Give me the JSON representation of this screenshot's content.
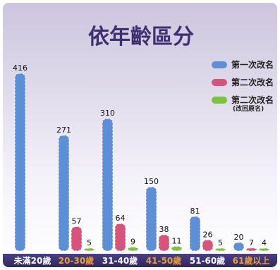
{
  "chart_data": {
    "type": "bar",
    "title": "依年齡區分",
    "categories": [
      "未滿20歲",
      "20-30歲",
      "31-40歲",
      "41-50歲",
      "51-60歲",
      "61歲以上"
    ],
    "category_colors": [
      "#ffffff",
      "#f0a030",
      "#ffffff",
      "#f0a030",
      "#ffffff",
      "#f0a030"
    ],
    "series": [
      {
        "name": "第一次改名",
        "color": "#5b8fd8",
        "values": [
          416,
          271,
          310,
          150,
          81,
          20
        ]
      },
      {
        "name": "第二次改名",
        "color": "#d9527a",
        "values": [
          null,
          57,
          64,
          38,
          26,
          7
        ]
      },
      {
        "name": "第二次改名",
        "sub": "(改回原名)",
        "color": "#7dc23a",
        "values": [
          null,
          5,
          9,
          11,
          5,
          4
        ]
      }
    ],
    "ylim": [
      0,
      416
    ],
    "legend_position": "top-right",
    "grid": false
  }
}
